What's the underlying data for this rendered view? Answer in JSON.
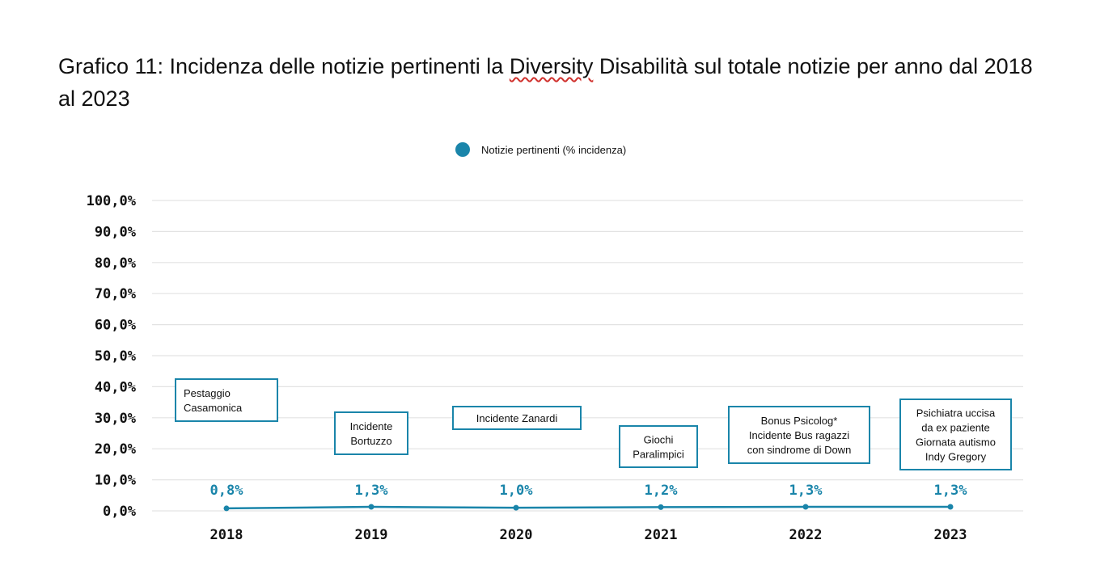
{
  "title": {
    "before": "Grafico 11: Incidenza delle notizie pertinenti la ",
    "spell": "Diversity",
    "after": " Disabilità sul totale notizie per anno dal 2018 al 2023"
  },
  "colors": {
    "series": "#1a85aa",
    "grid": "#e3e3e3",
    "annotation_border": "#1a85aa"
  },
  "chart_data": {
    "type": "line",
    "title": "Grafico 11: Incidenza delle notizie pertinenti la Diversity Disabilità sul totale notizie per anno dal 2018 al 2023",
    "categories": [
      "2018",
      "2019",
      "2020",
      "2021",
      "2022",
      "2023"
    ],
    "series": [
      {
        "name": "Notizie pertinenti (% incidenza)",
        "values": [
          0.8,
          1.3,
          1.0,
          1.2,
          1.3,
          1.3
        ],
        "labels": [
          "0,8%",
          "1,3%",
          "1,0%",
          "1,2%",
          "1,3%",
          "1,3%"
        ]
      }
    ],
    "ylim": [
      0,
      100
    ],
    "yticks": [
      0,
      10,
      20,
      30,
      40,
      50,
      60,
      70,
      80,
      90,
      100
    ],
    "ytick_labels": [
      "0,0%",
      "10,0%",
      "20,0%",
      "30,0%",
      "40,0%",
      "50,0%",
      "60,0%",
      "70,0%",
      "80,0%",
      "90,0%",
      "100,0%"
    ],
    "grid": true,
    "legend": "top-center",
    "annotations": [
      {
        "category": "2018",
        "lines": [
          "Pestaggio",
          "Casamonica"
        ],
        "align": "left"
      },
      {
        "category": "2019",
        "lines": [
          "Incidente",
          "Bortuzzo"
        ],
        "align": "center"
      },
      {
        "category": "2020",
        "lines": [
          "Incidente Zanardi"
        ],
        "align": "center"
      },
      {
        "category": "2021",
        "lines": [
          "Giochi",
          "Paralimpici"
        ],
        "align": "center"
      },
      {
        "category": "2022",
        "lines": [
          "Bonus Psicolog*",
          "Incidente Bus ragazzi",
          "con sindrome di Down"
        ],
        "align": "center"
      },
      {
        "category": "2023",
        "lines": [
          "Psichiatra uccisa",
          "da ex paziente",
          "Giornata autismo",
          "Indy Gregory"
        ],
        "align": "center"
      }
    ]
  }
}
